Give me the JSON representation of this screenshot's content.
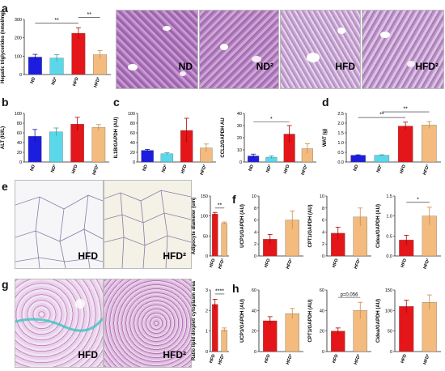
{
  "panels": {
    "a": {
      "label": "a",
      "images": [
        "ND",
        "ND²",
        "HFD",
        "HFD²"
      ]
    },
    "b": {
      "label": "b"
    },
    "c": {
      "label": "c"
    },
    "d": {
      "label": "d"
    },
    "e": {
      "label": "e",
      "images": [
        "HFD",
        "HFD²"
      ]
    },
    "f": {
      "label": "f"
    },
    "g": {
      "label": "g",
      "images": [
        "HFD",
        "HFD²"
      ]
    },
    "h": {
      "label": "h"
    }
  },
  "colors": {
    "ND": "#1d1de0",
    "ND2": "#5ad8ea",
    "HFD": "#e4161a",
    "HFD2": "#f3bb7e"
  },
  "chart_data": [
    {
      "id": "a",
      "type": "bar",
      "ylabel": "Hepatic triglycerides (nmol/mg)",
      "categories": [
        "ND",
        "ND²",
        "HFD",
        "HFD²"
      ],
      "values": [
        95,
        90,
        225,
        108
      ],
      "errors": [
        15,
        18,
        30,
        22
      ],
      "ylim": [
        0,
        300
      ],
      "yticks": [
        0,
        100,
        200,
        300
      ],
      "sig": [
        {
          "from": 0,
          "to": 2,
          "text": "**"
        },
        {
          "from": 2,
          "to": 3,
          "text": "**"
        }
      ]
    },
    {
      "id": "b",
      "type": "bar",
      "ylabel": "ALT (IU/L)",
      "categories": [
        "ND",
        "ND²",
        "HFD",
        "HFD²"
      ],
      "values": [
        53,
        62,
        78,
        71
      ],
      "errors": [
        14,
        8,
        14,
        6
      ],
      "ylim": [
        0,
        100
      ],
      "yticks": [
        0,
        20,
        40,
        60,
        80,
        100
      ],
      "sig": []
    },
    {
      "id": "c1",
      "type": "bar",
      "ylabel": "IL1B/GAPDH (AU)",
      "categories": [
        "ND",
        "ND²",
        "HFD",
        "HFD²"
      ],
      "values": [
        24,
        17,
        65,
        29
      ],
      "errors": [
        2,
        2,
        25,
        8
      ],
      "ylim": [
        0,
        100
      ],
      "yticks": [
        0,
        20,
        40,
        60,
        80,
        100
      ],
      "sig": []
    },
    {
      "id": "c2",
      "type": "bar",
      "ylabel": "CCL2/GAPDH AU",
      "categories": [
        "ND",
        "ND²",
        "HFD",
        "HFD²"
      ],
      "values": [
        5,
        4,
        23,
        11
      ],
      "errors": [
        1.5,
        1,
        7,
        4
      ],
      "ylim": [
        0,
        40
      ],
      "yticks": [
        0,
        10,
        20,
        30,
        40
      ],
      "sig": [
        {
          "from": 0,
          "to": 2,
          "text": "*"
        }
      ]
    },
    {
      "id": "d",
      "type": "bar",
      "ylabel": "WAT (g)",
      "categories": [
        "ND",
        "ND²",
        "HFD",
        "HFD²"
      ],
      "values": [
        0.35,
        0.35,
        1.85,
        1.9
      ],
      "errors": [
        0.02,
        0.02,
        0.2,
        0.18
      ],
      "ylim": [
        0,
        2.5
      ],
      "yticks": [
        0.0,
        0.5,
        1.0,
        1.5,
        2.0,
        2.5
      ],
      "sig": [
        {
          "from": 0,
          "to": 2,
          "text": "**"
        },
        {
          "from": 1,
          "to": 3,
          "text": "**"
        }
      ]
    },
    {
      "id": "e",
      "type": "bar",
      "ylabel": "Adipocyte diameter (um)",
      "categories": [
        "HFD",
        "HFD²"
      ],
      "values": [
        105,
        82
      ],
      "errors": [
        4,
        3
      ],
      "ylim": [
        0,
        150
      ],
      "yticks": [
        0,
        50,
        100,
        150
      ],
      "sig": [
        {
          "from": 0,
          "to": 1,
          "text": "**"
        }
      ]
    },
    {
      "id": "f1",
      "type": "bar",
      "ylabel": "UCP1/GAPDH (AU)",
      "categories": [
        "HFD",
        "HFD²"
      ],
      "values": [
        2.8,
        6.0
      ],
      "errors": [
        0.8,
        1.5
      ],
      "ylim": [
        0,
        10
      ],
      "yticks": [
        0,
        2,
        4,
        6,
        8,
        10
      ],
      "sig": []
    },
    {
      "id": "f2",
      "type": "bar",
      "ylabel": "CPT1/GAPDH (AU)",
      "categories": [
        "HFD",
        "HFD²"
      ],
      "values": [
        3.8,
        6.5
      ],
      "errors": [
        1.0,
        1.5
      ],
      "ylim": [
        0,
        10
      ],
      "yticks": [
        0,
        2,
        4,
        6,
        8,
        10
      ],
      "sig": []
    },
    {
      "id": "f3",
      "type": "bar",
      "ylabel": "Cidea/GAPDH (AU)",
      "categories": [
        "HFD",
        "HFD²"
      ],
      "values": [
        0.4,
        1.0
      ],
      "errors": [
        0.12,
        0.22
      ],
      "ylim": [
        0,
        1.5
      ],
      "yticks": [
        0.0,
        0.5,
        1.0,
        1.5
      ],
      "sig": [
        {
          "from": 0,
          "to": 1,
          "text": "*"
        }
      ]
    },
    {
      "id": "g",
      "type": "bar",
      "ylabel": "Ratio lipid droplet/ cytoplasm area",
      "categories": [
        "HFD",
        "HFD²"
      ],
      "values": [
        2.3,
        1.05
      ],
      "errors": [
        0.25,
        0.1
      ],
      "ylim": [
        0,
        3
      ],
      "yticks": [
        0,
        1,
        2,
        3
      ],
      "sig": [
        {
          "from": 0,
          "to": 1,
          "text": "****"
        }
      ]
    },
    {
      "id": "h1",
      "type": "bar",
      "ylabel": "UCP1/GAPDH (AU)",
      "categories": [
        "HFD",
        "HFD²"
      ],
      "values": [
        30,
        37
      ],
      "errors": [
        4,
        5
      ],
      "ylim": [
        0,
        60
      ],
      "yticks": [
        0,
        20,
        40,
        60
      ],
      "sig": []
    },
    {
      "id": "h2",
      "type": "bar",
      "ylabel": "CPT1/GAPDH (AU)",
      "categories": [
        "HFD",
        "HFD²"
      ],
      "values": [
        20,
        40
      ],
      "errors": [
        3,
        8
      ],
      "ylim": [
        0,
        60
      ],
      "yticks": [
        0,
        20,
        40,
        60
      ],
      "sig": [
        {
          "from": 0,
          "to": 1,
          "text": "p=0.056"
        }
      ]
    },
    {
      "id": "h3",
      "type": "bar",
      "ylabel": "Cidea/GAPDH (AU)",
      "categories": [
        "HFD",
        "HFD²"
      ],
      "values": [
        110,
        120
      ],
      "errors": [
        15,
        18
      ],
      "ylim": [
        0,
        150
      ],
      "yticks": [
        0,
        50,
        100,
        150
      ],
      "sig": []
    }
  ]
}
